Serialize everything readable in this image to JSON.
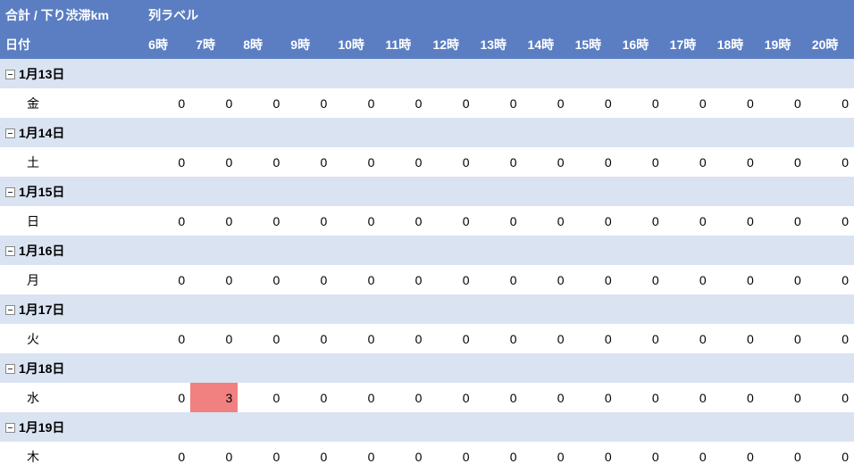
{
  "header": {
    "title": "合計 / 下り渋滞km",
    "column_label": "列ラベル",
    "row_label": "日付"
  },
  "hours": [
    "6時",
    "7時",
    "8時",
    "9時",
    "10時",
    "11時",
    "12時",
    "13時",
    "14時",
    "15時",
    "16時",
    "17時",
    "18時",
    "19時",
    "20時"
  ],
  "groups": [
    {
      "date": "1月13日",
      "day": "金",
      "values": [
        0,
        0,
        0,
        0,
        0,
        0,
        0,
        0,
        0,
        0,
        0,
        0,
        0,
        0,
        0
      ],
      "hl": []
    },
    {
      "date": "1月14日",
      "day": "土",
      "values": [
        0,
        0,
        0,
        0,
        0,
        0,
        0,
        0,
        0,
        0,
        0,
        0,
        0,
        0,
        0
      ],
      "hl": []
    },
    {
      "date": "1月15日",
      "day": "日",
      "values": [
        0,
        0,
        0,
        0,
        0,
        0,
        0,
        0,
        0,
        0,
        0,
        0,
        0,
        0,
        0
      ],
      "hl": []
    },
    {
      "date": "1月16日",
      "day": "月",
      "values": [
        0,
        0,
        0,
        0,
        0,
        0,
        0,
        0,
        0,
        0,
        0,
        0,
        0,
        0,
        0
      ],
      "hl": []
    },
    {
      "date": "1月17日",
      "day": "火",
      "values": [
        0,
        0,
        0,
        0,
        0,
        0,
        0,
        0,
        0,
        0,
        0,
        0,
        0,
        0,
        0
      ],
      "hl": []
    },
    {
      "date": "1月18日",
      "day": "水",
      "values": [
        0,
        3,
        0,
        0,
        0,
        0,
        0,
        0,
        0,
        0,
        0,
        0,
        0,
        0,
        0
      ],
      "hl": [
        1
      ]
    },
    {
      "date": "1月19日",
      "day": "木",
      "values": [
        0,
        0,
        0,
        0,
        0,
        0,
        0,
        0,
        0,
        0,
        0,
        0,
        0,
        0,
        0
      ],
      "hl": []
    }
  ],
  "colors": {
    "header_bg": "#5b7ec2",
    "date_row_bg": "#dae3f2",
    "highlight_bg": "#f18080"
  }
}
